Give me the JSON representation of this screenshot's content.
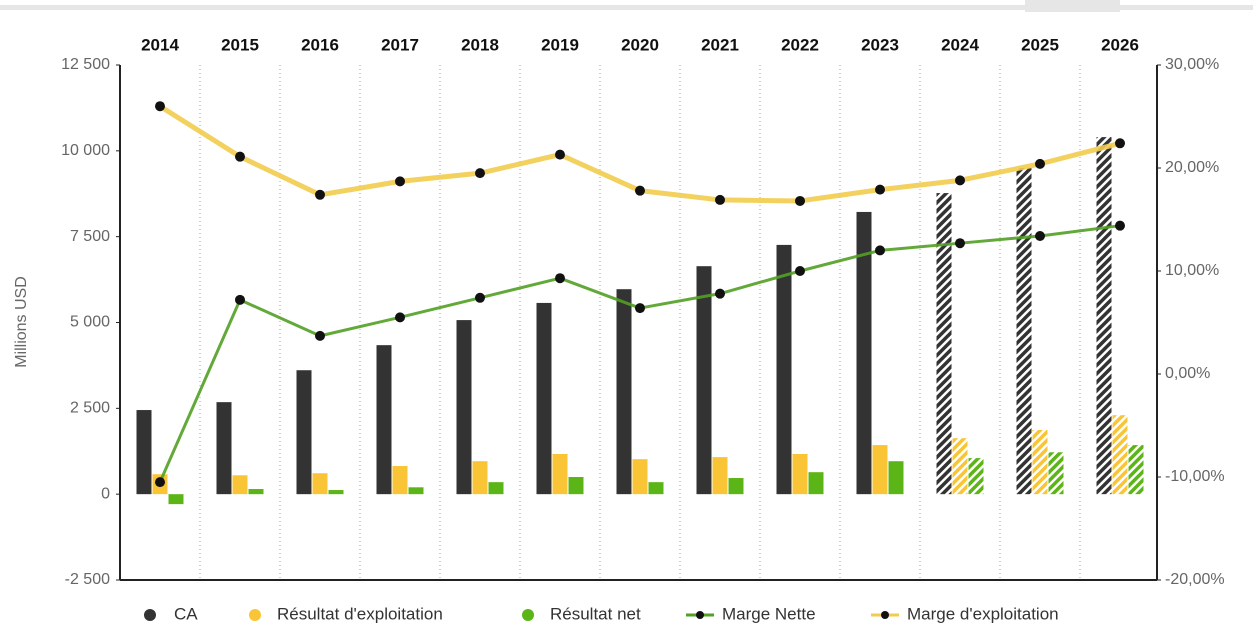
{
  "chart_data": {
    "type": "bar_line",
    "y_label": "Millions USD",
    "categories": [
      "2014",
      "2015",
      "2016",
      "2017",
      "2018",
      "2019",
      "2020",
      "2021",
      "2022",
      "2023",
      "2024",
      "2025",
      "2026"
    ],
    "hatched": [
      false,
      false,
      false,
      false,
      false,
      false,
      false,
      false,
      false,
      false,
      true,
      true,
      true
    ],
    "series": [
      {
        "name": "CA",
        "type": "bar",
        "color": "#333333",
        "values": [
          2450,
          2680,
          3610,
          4340,
          5070,
          5570,
          5970,
          6640,
          7260,
          8220,
          8770,
          9500,
          10400
        ]
      },
      {
        "name": "Résultat d'exploitation",
        "type": "bar",
        "color": "#f9c536",
        "values": [
          580,
          550,
          610,
          820,
          960,
          1170,
          1020,
          1080,
          1170,
          1430,
          1630,
          1870,
          2300
        ]
      },
      {
        "name": "Résultat net",
        "type": "bar",
        "color": "#5cb517",
        "values": [
          -290,
          150,
          120,
          200,
          350,
          500,
          350,
          470,
          640,
          960,
          1050,
          1220,
          1430
        ]
      },
      {
        "name": "Marge Nette",
        "type": "line",
        "axis": "y2",
        "color": "#52a025",
        "values": [
          -10.5,
          7.2,
          3.7,
          5.5,
          7.4,
          9.3,
          6.4,
          7.8,
          10.0,
          12.0,
          12.7,
          13.4,
          14.4
        ]
      },
      {
        "name": "Marge d'exploitation",
        "type": "line",
        "axis": "y2",
        "color": "#f2cc4e",
        "values": [
          26.0,
          21.1,
          17.4,
          18.7,
          19.5,
          21.3,
          17.8,
          16.9,
          16.8,
          17.9,
          18.8,
          20.4,
          22.4
        ]
      }
    ],
    "ylim": [
      -2500,
      12500
    ],
    "yticks": [
      {
        "value": -2500,
        "label": "-2 500"
      },
      0,
      {
        "value": 2500,
        "label": "2 500"
      },
      {
        "value": 5000,
        "label": "5 000"
      },
      {
        "value": 7500,
        "label": "7 500"
      },
      {
        "value": 10000,
        "label": "10 000"
      },
      {
        "value": 12500,
        "label": "12 500"
      }
    ],
    "y2lim": [
      -20,
      30
    ],
    "y2ticks": [
      {
        "value": -20,
        "label": "-20,00%"
      },
      {
        "value": -10,
        "label": "-10,00%"
      },
      {
        "value": 0,
        "label": "0,00%"
      },
      {
        "value": 10,
        "label": "10,00%"
      },
      {
        "value": 20,
        "label": "20,00%"
      },
      {
        "value": 30,
        "label": "30,00%"
      }
    ],
    "grid": true,
    "legend": "bottom"
  }
}
